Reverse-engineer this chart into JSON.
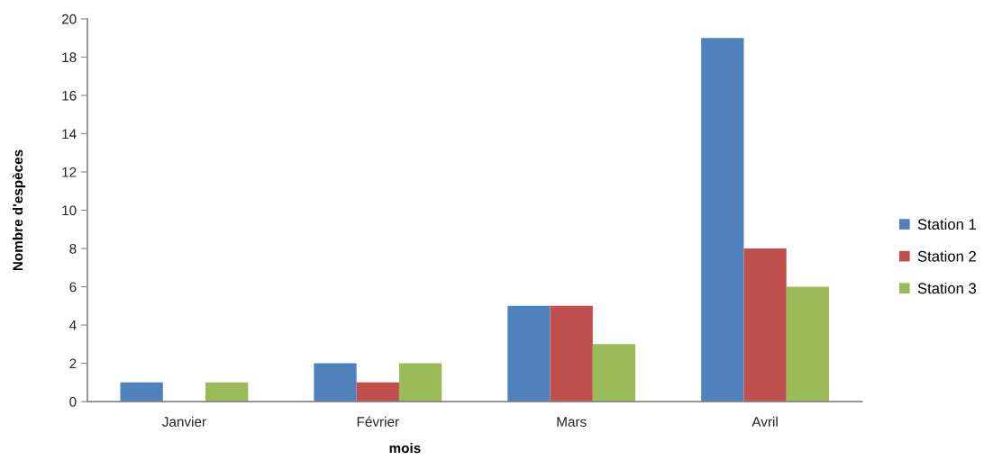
{
  "chart_data": {
    "type": "bar",
    "categories": [
      "Janvier",
      "Février",
      "Mars",
      "Avril"
    ],
    "series": [
      {
        "name": "Station 1",
        "color": "#4f81bd",
        "values": [
          1,
          2,
          5,
          19
        ]
      },
      {
        "name": "Station 2",
        "color": "#c0504d",
        "values": [
          null,
          1,
          5,
          8
        ]
      },
      {
        "name": "Station 3",
        "color": "#9bbb59",
        "values": [
          1,
          2,
          3,
          6
        ]
      }
    ],
    "xlabel": "mois",
    "ylabel": "Nombre d'espèces",
    "ylim": [
      0,
      20
    ],
    "yticks": [
      0,
      2,
      4,
      6,
      8,
      10,
      12,
      14,
      16,
      18,
      20
    ],
    "grid": false,
    "legend": "right"
  }
}
